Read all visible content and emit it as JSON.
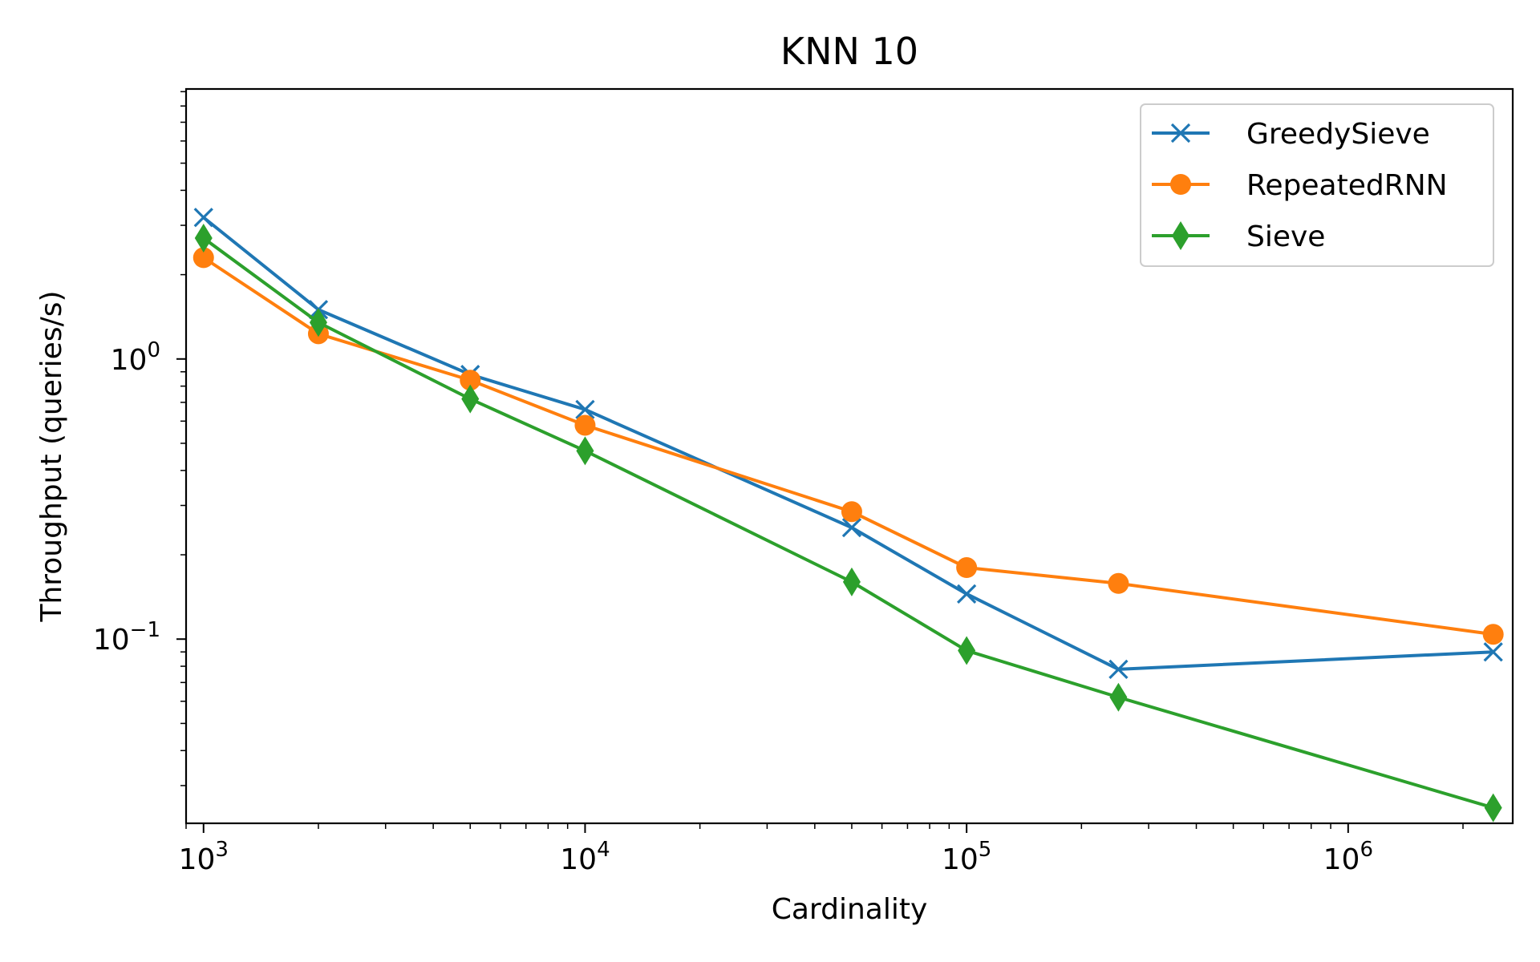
{
  "chart_data": {
    "type": "line",
    "title": "KNN 10",
    "xlabel": "Cardinality",
    "ylabel": "Throughput (queries/s)",
    "xscale": "log",
    "yscale": "log",
    "xlim": [
      900,
      2700000
    ],
    "ylim": [
      0.022,
      9.2
    ],
    "x_major_ticks": [
      {
        "value": 1000,
        "base": "10",
        "exp": "3"
      },
      {
        "value": 10000,
        "base": "10",
        "exp": "4"
      },
      {
        "value": 100000,
        "base": "10",
        "exp": "5"
      },
      {
        "value": 1000000,
        "base": "10",
        "exp": "6"
      }
    ],
    "y_major_ticks": [
      {
        "value": 1,
        "base": "10",
        "exp": "0"
      },
      {
        "value": 0.1,
        "base": "10",
        "exp": "−1"
      }
    ],
    "grid": false,
    "legend_position": "top-right",
    "x": [
      1000,
      2000,
      5000,
      10000,
      50000,
      100000,
      250000,
      2400000
    ],
    "series": [
      {
        "name": "GreedySieve",
        "color": "#1f77b4",
        "marker": "x",
        "values": [
          3.2,
          1.5,
          0.88,
          0.66,
          0.25,
          0.145,
          0.078,
          0.09
        ]
      },
      {
        "name": "RepeatedRNN",
        "color": "#ff7f0e",
        "marker": "circle",
        "values": [
          2.3,
          1.23,
          0.84,
          0.58,
          0.285,
          0.18,
          0.158,
          0.104
        ]
      },
      {
        "name": "Sieve",
        "color": "#2ca02c",
        "marker": "diamond",
        "values": [
          2.7,
          1.35,
          0.72,
          0.47,
          0.16,
          0.091,
          0.062,
          0.025
        ]
      }
    ]
  }
}
